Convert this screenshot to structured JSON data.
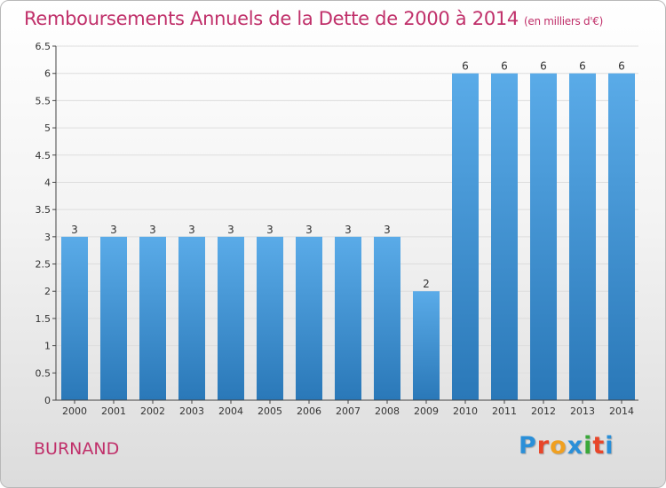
{
  "title": "Remboursements Annuels de la Dette de 2000 à 2014",
  "subtitle": "(en milliers d'€)",
  "commune": "BURNAND",
  "logo": {
    "text": "Proxiti",
    "letters": [
      {
        "char": "P",
        "color": "#2a8fd8"
      },
      {
        "char": "r",
        "color": "#e8462a"
      },
      {
        "char": "o",
        "color": "#f0a020"
      },
      {
        "char": "x",
        "color": "#2a8fd8"
      },
      {
        "char": "i",
        "color": "#3aa83a"
      },
      {
        "char": "t",
        "color": "#e8462a"
      },
      {
        "char": "i",
        "color": "#2a8fd8"
      }
    ]
  },
  "colors": {
    "title": "#c0306a",
    "bar_top": "#5aabe8",
    "bar_bottom": "#2a78b8",
    "grid": "#dddddd",
    "axis": "#444444"
  },
  "chart_data": {
    "type": "bar",
    "title": "Remboursements Annuels de la Dette de 2000 à 2014",
    "subtitle": "(en milliers d'€)",
    "xlabel": "",
    "ylabel": "",
    "categories": [
      "2000",
      "2001",
      "2002",
      "2003",
      "2004",
      "2005",
      "2006",
      "2007",
      "2008",
      "2009",
      "2010",
      "2011",
      "2012",
      "2013",
      "2014"
    ],
    "values": [
      3,
      3,
      3,
      3,
      3,
      3,
      3,
      3,
      3,
      2,
      6,
      6,
      6,
      6,
      6
    ],
    "data_labels": [
      "3",
      "3",
      "3",
      "3",
      "3",
      "3",
      "3",
      "3",
      "3",
      "2",
      "6",
      "6",
      "6",
      "6",
      "6"
    ],
    "ylim": [
      0,
      6.5
    ],
    "yticks": [
      0,
      0.5,
      1,
      1.5,
      2,
      2.5,
      3,
      3.5,
      4,
      4.5,
      5,
      5.5,
      6,
      6.5
    ],
    "ytick_labels": [
      "0",
      "0.5",
      "1",
      "1.5",
      "2",
      "2.5",
      "3",
      "3.5",
      "4",
      "4.5",
      "5",
      "5.5",
      "6",
      "6.5"
    ],
    "grid": true,
    "legend": "none"
  }
}
